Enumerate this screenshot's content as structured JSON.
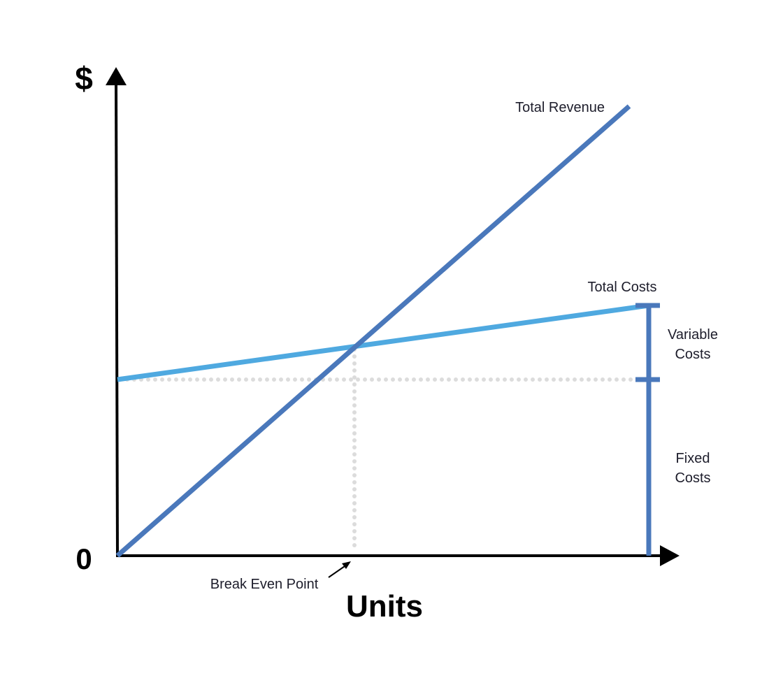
{
  "axes": {
    "y_label": "$",
    "origin_label": "0",
    "x_label": "Units"
  },
  "labels": {
    "total_revenue": "Total Revenue",
    "total_costs": "Total Costs",
    "variable_costs": [
      "Variable",
      "Costs"
    ],
    "fixed_costs": [
      "Fixed",
      "Costs"
    ],
    "break_even_point": "Break Even Point"
  }
}
